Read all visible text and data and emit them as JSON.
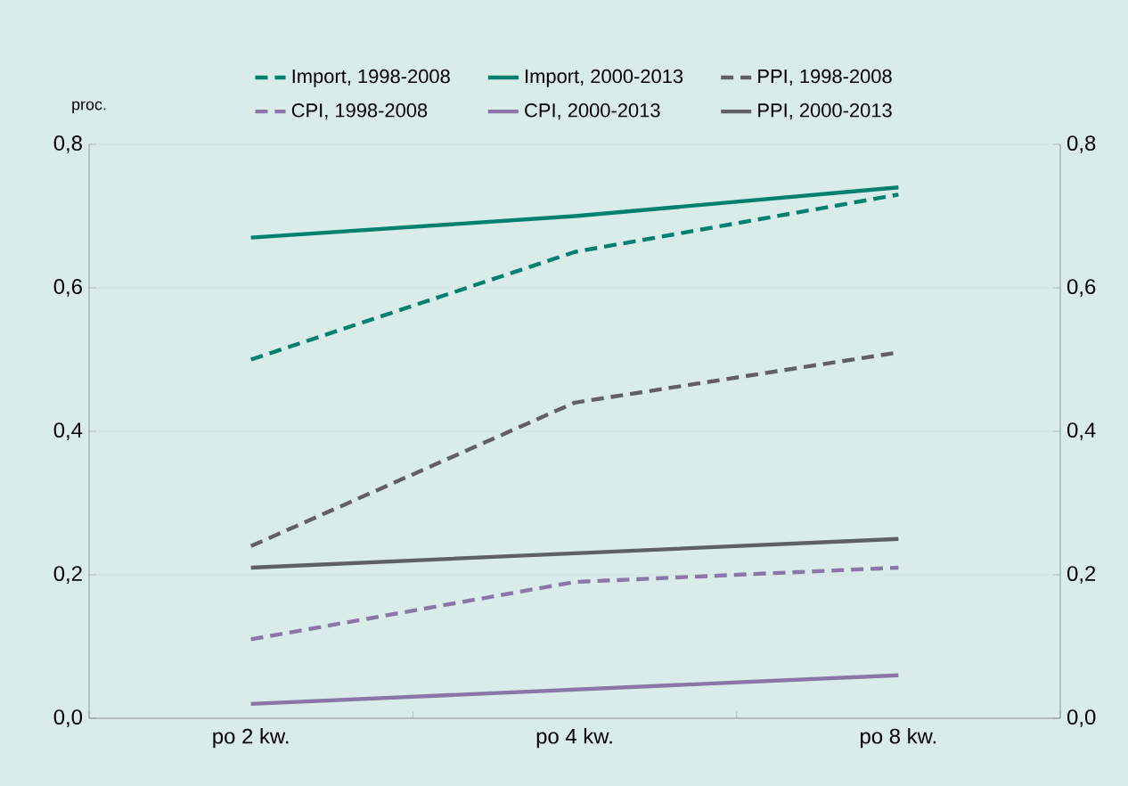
{
  "chart_data": {
    "type": "line",
    "ylabel": "proc.",
    "categories": [
      "po 2 kw.",
      "po 4 kw.",
      "po 8 kw."
    ],
    "series": [
      {
        "name": "Import, 1998-2008",
        "color": "#00806e",
        "line_style": "dashed",
        "values": [
          0.5,
          0.65,
          0.73
        ]
      },
      {
        "name": "Import, 2000-2013",
        "color": "#00806e",
        "line_style": "solid",
        "values": [
          0.67,
          0.7,
          0.74
        ]
      },
      {
        "name": "PPI, 1998-2008",
        "color": "#5f5f64",
        "line_style": "dashed",
        "values": [
          0.24,
          0.44,
          0.51
        ]
      },
      {
        "name": "CPI, 1998-2008",
        "color": "#8c75a8",
        "line_style": "dashed",
        "values": [
          0.11,
          0.19,
          0.21
        ]
      },
      {
        "name": "CPI, 2000-2013",
        "color": "#8c75a8",
        "line_style": "solid",
        "values": [
          0.02,
          0.04,
          0.06
        ]
      },
      {
        "name": "PPI, 2000-2013",
        "color": "#5f5f64",
        "line_style": "solid",
        "values": [
          0.21,
          0.23,
          0.25
        ]
      }
    ],
    "ylim": [
      0,
      0.8
    ],
    "yticks": [
      {
        "value": 0,
        "label": "0,0"
      },
      {
        "value": 0.2,
        "label": "0,2"
      },
      {
        "value": 0.4,
        "label": "0,4"
      },
      {
        "value": 0.6,
        "label": "0,6"
      },
      {
        "value": 0.8,
        "label": "0,8"
      }
    ],
    "y2lim": [
      0,
      0.8
    ],
    "y2ticks": [
      {
        "value": 0,
        "label": "0,0"
      },
      {
        "value": 0.2,
        "label": "0,2"
      },
      {
        "value": 0.4,
        "label": "0,4"
      },
      {
        "value": 0.6,
        "label": "0,6"
      },
      {
        "value": 0.8,
        "label": "0,8"
      }
    ],
    "grid": "y",
    "legend": "top",
    "marker": "none"
  }
}
